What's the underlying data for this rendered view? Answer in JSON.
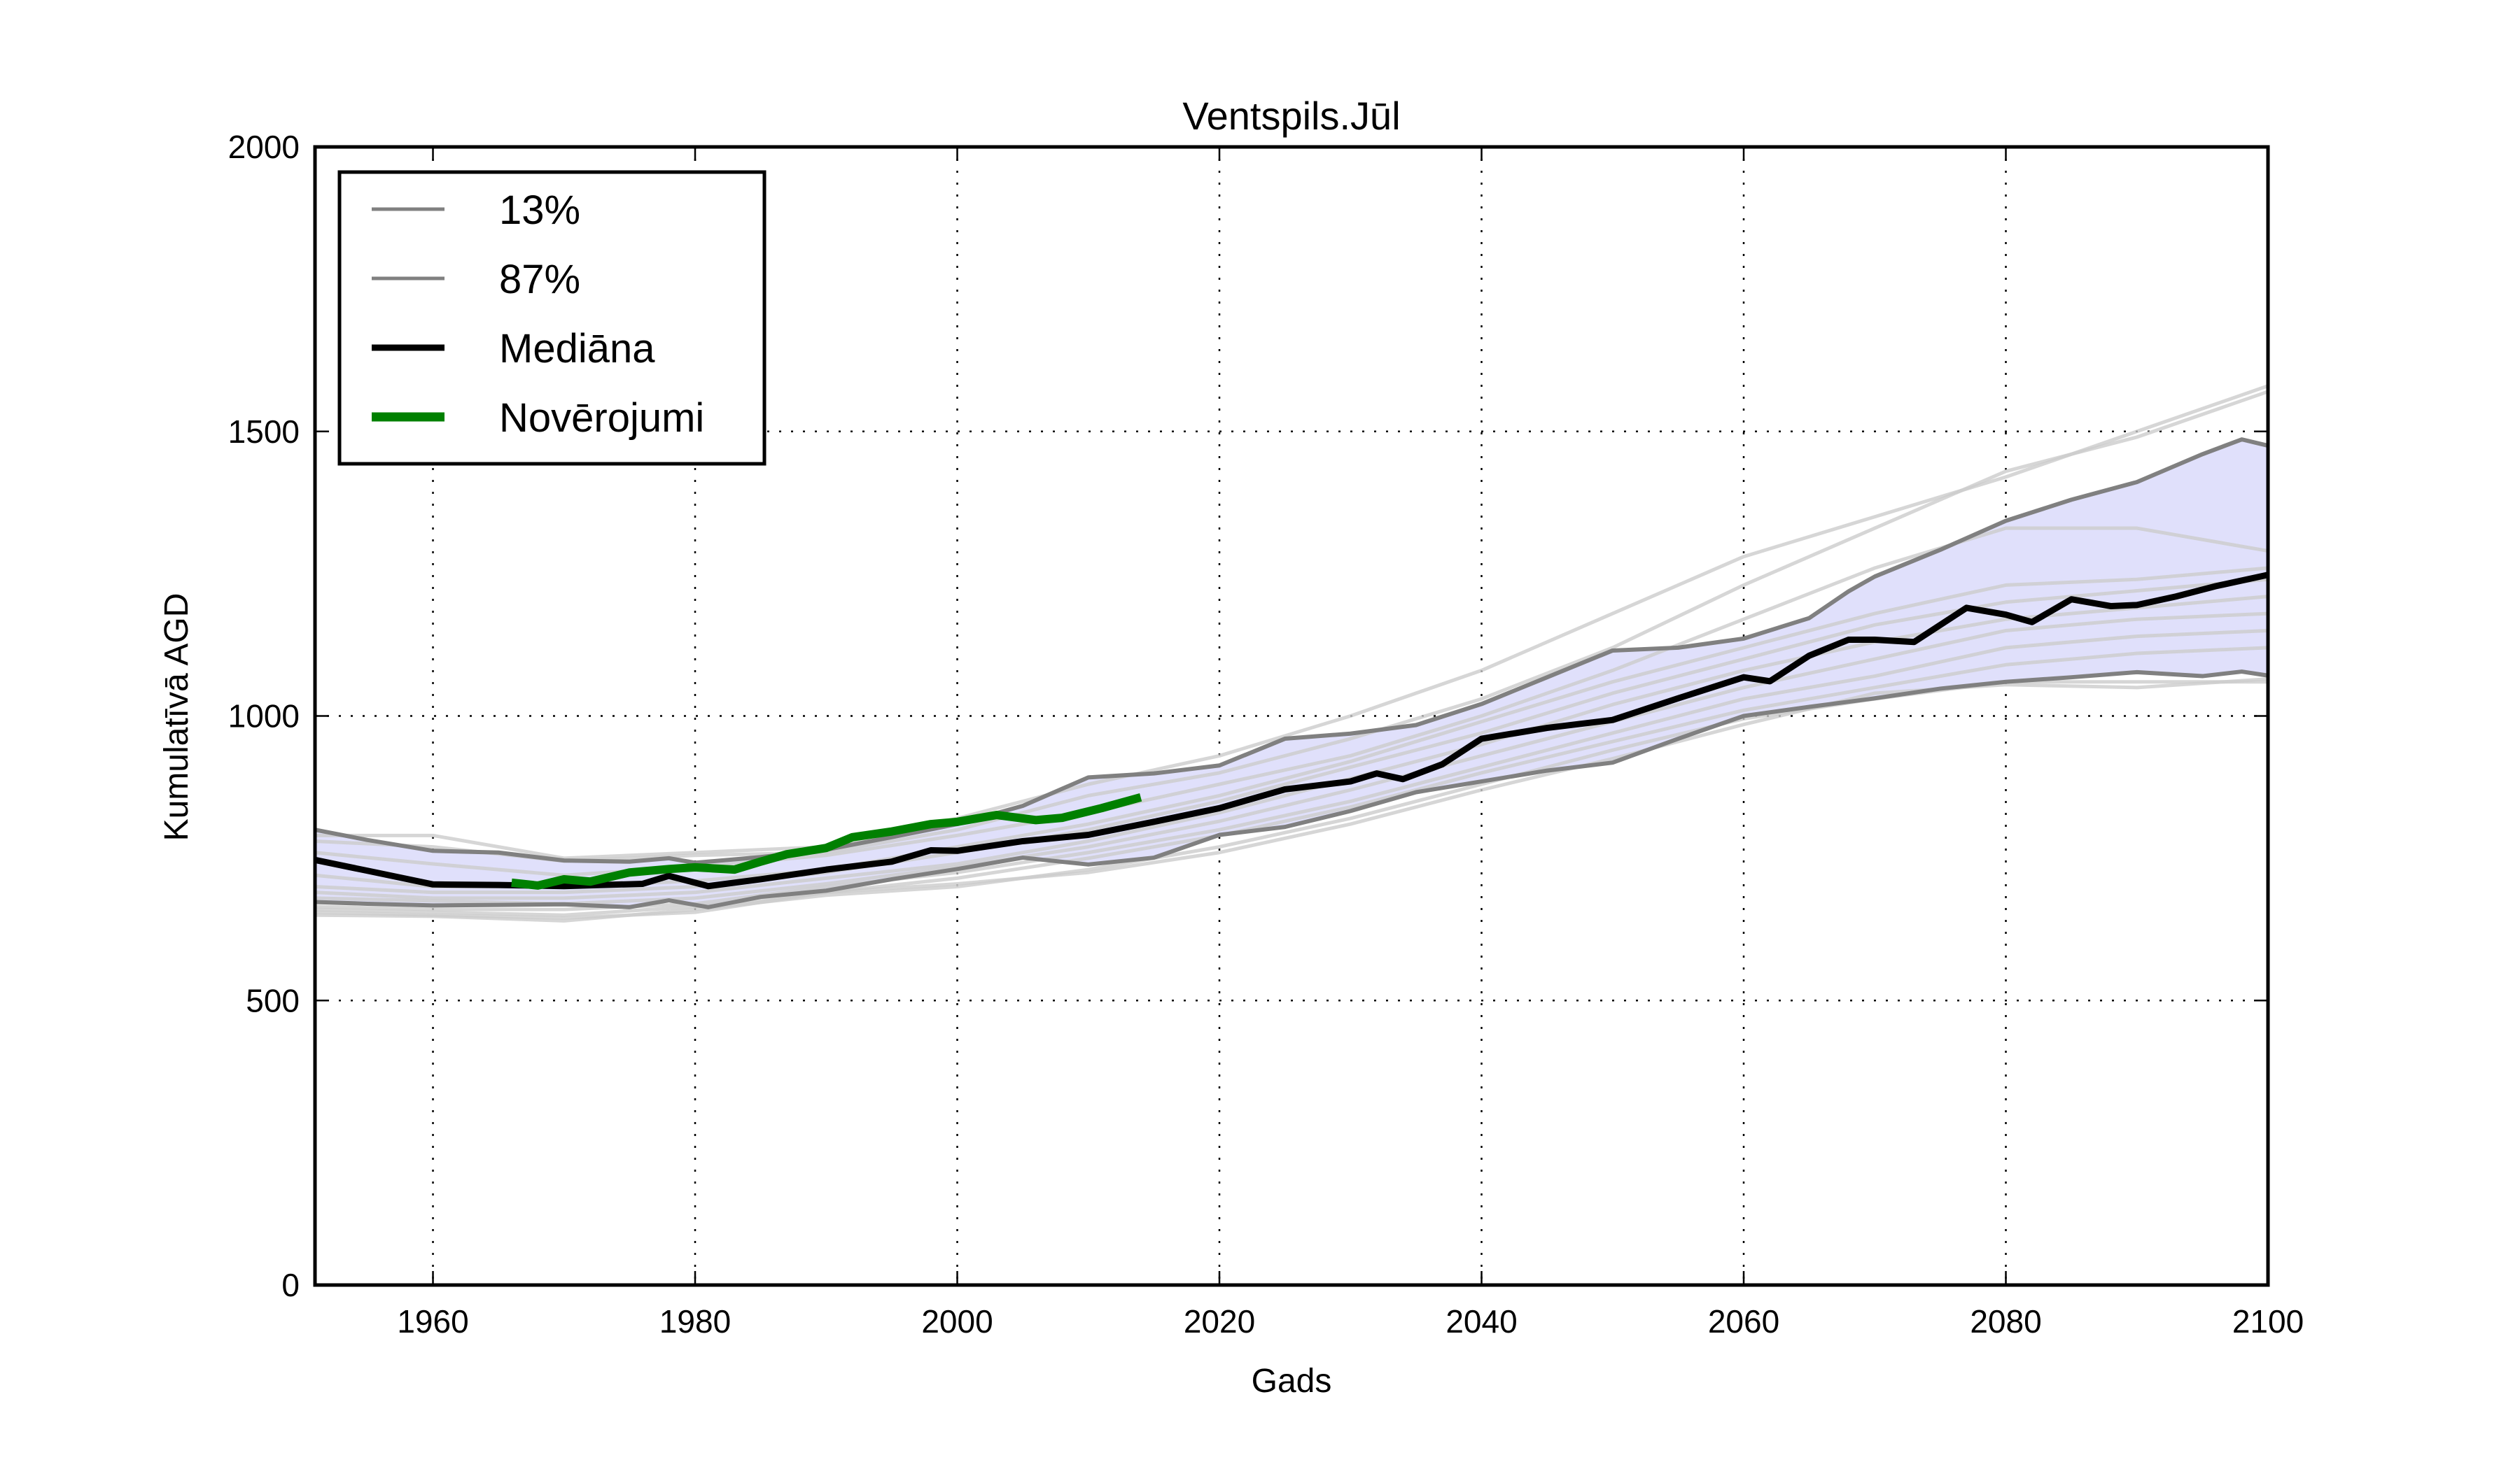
{
  "chart_data": {
    "type": "line",
    "title": "Ventspils.Jūl",
    "xlabel": "Gads",
    "ylabel": "Kumulatīvā AGD",
    "xlim": [
      1951,
      2100
    ],
    "ylim": [
      0,
      2000
    ],
    "xticks": [
      1960,
      1980,
      2000,
      2020,
      2040,
      2060,
      2080,
      2100
    ],
    "yticks": [
      0,
      500,
      1000,
      1500,
      2000
    ],
    "grid": true,
    "legend_position": "top-left",
    "legend": [
      {
        "label": "13%",
        "color": "#808080",
        "style": "thin"
      },
      {
        "label": "87%",
        "color": "#808080",
        "style": "thin"
      },
      {
        "label": "Mediāna",
        "color": "#000000",
        "style": "thick"
      },
      {
        "label": "Novērojumi",
        "color": "#008000",
        "style": "thicker"
      }
    ],
    "band": {
      "name": "13%-87% range",
      "color": "#e0e0fb",
      "between": [
        "13%",
        "87%"
      ]
    },
    "series": [
      {
        "name": "13%",
        "color": "#808080",
        "x": [
          1951,
          1955,
          1960,
          1965,
          1970,
          1975,
          1978,
          1981,
          1985,
          1990,
          1995,
          2000,
          2005,
          2010,
          2015,
          2020,
          2025,
          2030,
          2035,
          2040,
          2045,
          2050,
          2055,
          2060,
          2065,
          2070,
          2075,
          2080,
          2085,
          2090,
          2095,
          2098,
          2100
        ],
        "y": [
          673,
          670,
          667,
          668,
          669,
          664,
          676,
          664,
          682,
          693,
          713,
          731,
          751,
          739,
          751,
          791,
          805,
          833,
          866,
          885,
          904,
          918,
          960,
          1000,
          1016,
          1031,
          1048,
          1060,
          1068,
          1077,
          1070,
          1078,
          1071
        ]
      },
      {
        "name": "87%",
        "color": "#808080",
        "x": [
          1951,
          1955,
          1960,
          1965,
          1970,
          1975,
          1978,
          1980,
          1985,
          1990,
          1995,
          2000,
          2005,
          2010,
          2015,
          2020,
          2025,
          2030,
          2035,
          2040,
          2045,
          2050,
          2055,
          2060,
          2065,
          2068,
          2070,
          2075,
          2080,
          2085,
          2090,
          2095,
          2098,
          2100
        ],
        "y": [
          800,
          782,
          763,
          760,
          746,
          744,
          750,
          742,
          752,
          765,
          787,
          810,
          842,
          892,
          899,
          913,
          960,
          969,
          984,
          1021,
          1068,
          1115,
          1120,
          1136,
          1172,
          1219,
          1245,
          1292,
          1343,
          1380,
          1411,
          1460,
          1486,
          1475
        ]
      },
      {
        "name": "Mediāna",
        "color": "#000000",
        "x": [
          1951,
          1955,
          1960,
          1965,
          1970,
          1976,
          1978,
          1981,
          1985,
          1990,
          1995,
          1998,
          2000,
          2005,
          2010,
          2015,
          2020,
          2025,
          2030,
          2032,
          2034,
          2037,
          2040,
          2045,
          2050,
          2055,
          2060,
          2062,
          2065,
          2068,
          2070,
          2073,
          2077,
          2080,
          2082,
          2085,
          2088,
          2090,
          2093,
          2096,
          2100
        ],
        "y": [
          747,
          728,
          704,
          703,
          701,
          705,
          719,
          701,
          713,
          730,
          744,
          764,
          763,
          780,
          791,
          814,
          838,
          871,
          885,
          899,
          889,
          915,
          960,
          979,
          993,
          1031,
          1068,
          1061,
          1106,
          1134,
          1134,
          1130,
          1190,
          1178,
          1165,
          1205,
          1193,
          1195,
          1210,
          1228,
          1248
        ]
      },
      {
        "name": "Novērojumi",
        "color": "#008000",
        "x": [
          1966,
          1968,
          1970,
          1972,
          1975,
          1978,
          1980,
          1983,
          1985,
          1987,
          1990,
          1992,
          1995,
          1998,
          2000,
          2003,
          2006,
          2008,
          2011,
          2014
        ],
        "y": [
          707,
          702,
          713,
          709,
          725,
          731,
          734,
          730,
          744,
          757,
          768,
          787,
          797,
          810,
          814,
          826,
          817,
          821,
          838,
          857
        ]
      }
    ],
    "ensemble_members": {
      "color": "#cccccc",
      "x": [
        1951,
        1960,
        1970,
        1980,
        1990,
        2000,
        2010,
        2020,
        2030,
        2040,
        2050,
        2060,
        2070,
        2080,
        2090,
        2100
      ],
      "lines": [
        [
          790,
          790,
          750,
          760,
          770,
          820,
          880,
          930,
          1000,
          1080,
          1180,
          1280,
          1350,
          1420,
          1500,
          1580
        ],
        [
          780,
          770,
          745,
          755,
          760,
          800,
          860,
          900,
          960,
          1030,
          1120,
          1230,
          1330,
          1430,
          1490,
          1570
        ],
        [
          760,
          740,
          720,
          735,
          755,
          790,
          830,
          880,
          930,
          1000,
          1080,
          1170,
          1260,
          1330,
          1330,
          1290
        ],
        [
          720,
          700,
          700,
          710,
          730,
          770,
          810,
          860,
          920,
          990,
          1060,
          1120,
          1180,
          1230,
          1240,
          1260
        ],
        [
          700,
          690,
          690,
          700,
          725,
          760,
          800,
          850,
          910,
          970,
          1040,
          1100,
          1160,
          1200,
          1220,
          1240
        ],
        [
          690,
          680,
          680,
          690,
          715,
          740,
          780,
          830,
          890,
          950,
          1020,
          1080,
          1130,
          1170,
          1190,
          1210
        ],
        [
          680,
          675,
          670,
          680,
          705,
          735,
          770,
          815,
          870,
          930,
          990,
          1050,
          1100,
          1150,
          1170,
          1180
        ],
        [
          665,
          660,
          660,
          670,
          700,
          725,
          760,
          800,
          850,
          910,
          970,
          1030,
          1070,
          1120,
          1140,
          1150
        ],
        [
          660,
          655,
          650,
          665,
          690,
          715,
          750,
          790,
          840,
          900,
          955,
          1010,
          1050,
          1090,
          1110,
          1120
        ],
        [
          650,
          648,
          640,
          660,
          685,
          700,
          730,
          770,
          820,
          880,
          940,
          995,
          1030,
          1060,
          1060,
          1060
        ],
        [
          655,
          650,
          645,
          655,
          690,
          705,
          725,
          760,
          810,
          870,
          925,
          985,
          1040,
          1055,
          1050,
          1065
        ]
      ]
    }
  }
}
